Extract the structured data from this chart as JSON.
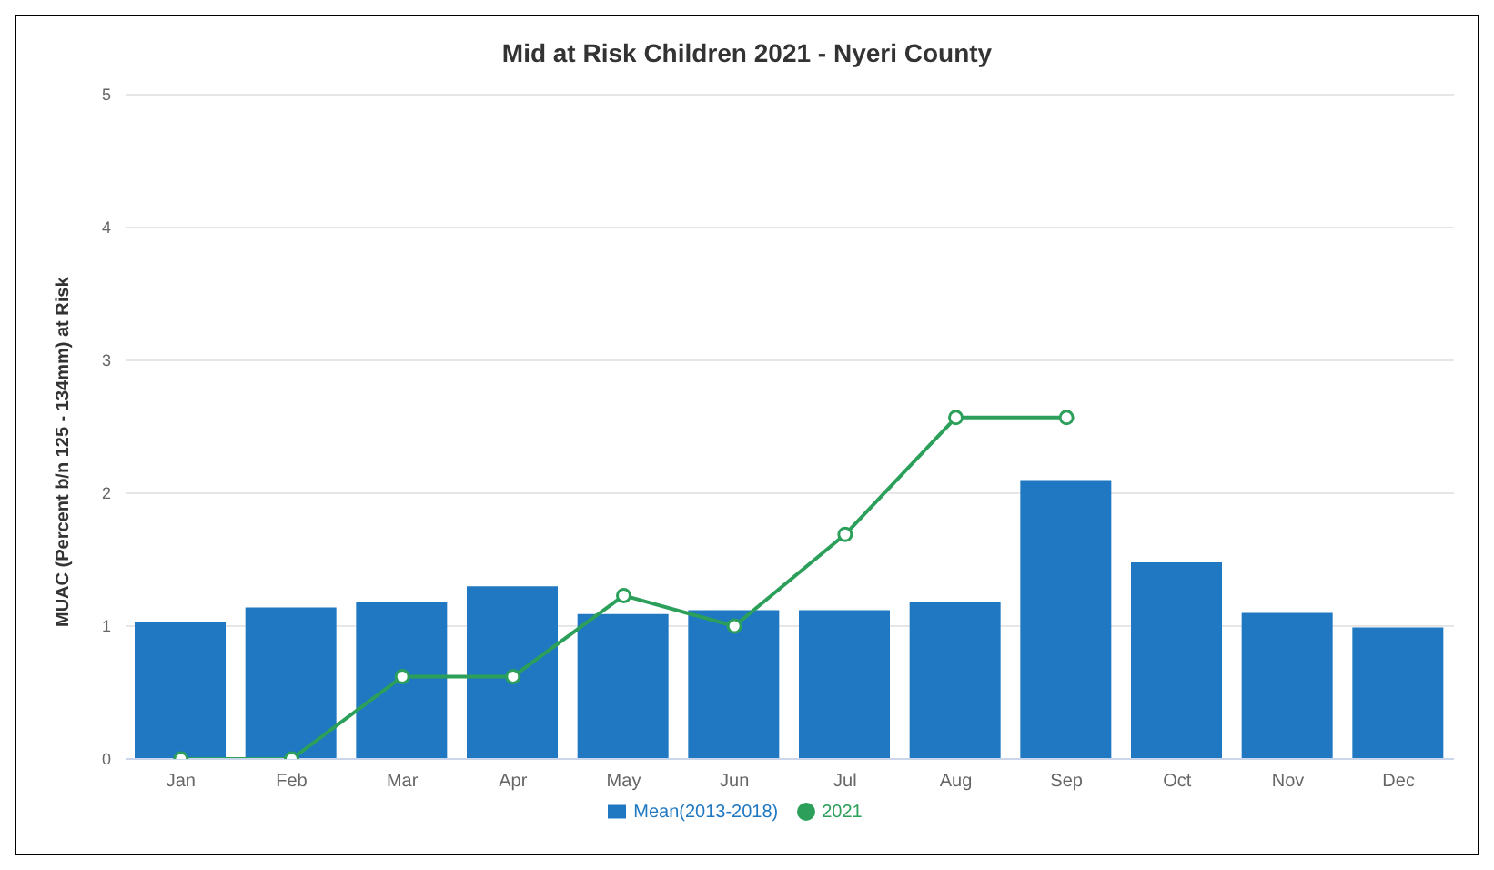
{
  "chart_data": {
    "type": "bar",
    "title": "Mid at Risk Children 2021 - Nyeri County",
    "ylabel": "MUAC (Percent b/n 125 - 134mm) at Risk",
    "categories": [
      "Jan",
      "Feb",
      "Mar",
      "Apr",
      "May",
      "Jun",
      "Jul",
      "Aug",
      "Sep",
      "Oct",
      "Nov",
      "Dec"
    ],
    "series": [
      {
        "name": "Mean(2013-2018)",
        "color": "#1f78c1",
        "values": [
          1.03,
          1.14,
          1.18,
          1.3,
          1.09,
          1.12,
          1.12,
          1.18,
          2.1,
          1.48,
          1.1,
          0.99
        ]
      },
      {
        "name": "2021",
        "type": "line",
        "color": "#2ca05a",
        "values": [
          0,
          0,
          0.62,
          0.62,
          1.23,
          1.0,
          1.69,
          2.57,
          2.57,
          null,
          null,
          null
        ]
      }
    ],
    "ylim": [
      0,
      5
    ],
    "yticks": [
      0,
      1,
      2,
      3,
      4,
      5
    ],
    "grid": "y",
    "legend": "bottom",
    "marker": "circle"
  }
}
